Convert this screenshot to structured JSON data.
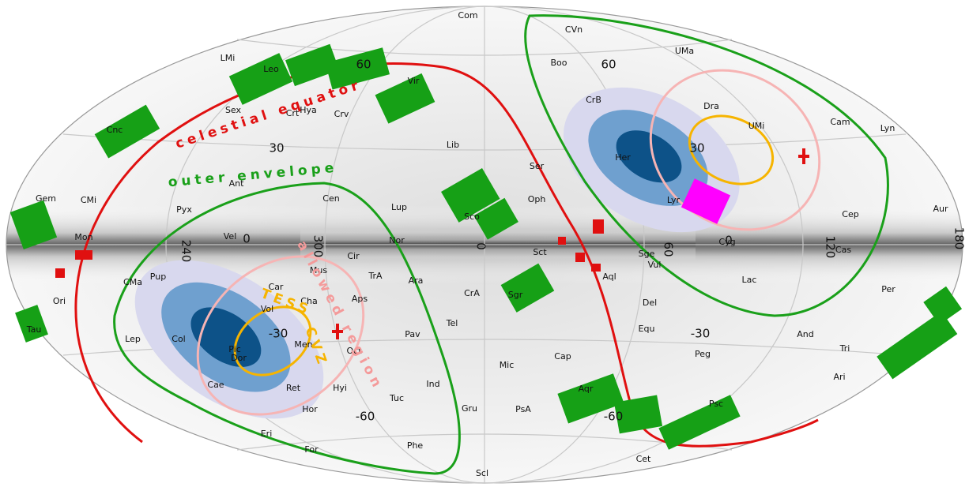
{
  "map": {
    "constellations": [
      "Com",
      "CVn",
      "UMa",
      "LMi",
      "Leo",
      "Boo",
      "Vir",
      "Sex",
      "Crt",
      "Hya",
      "Crv",
      "CrB",
      "Dra",
      "UMi",
      "Cam",
      "Lyn",
      "Cnc",
      "Lib",
      "Her",
      "Ser",
      "Ant",
      "Cen",
      "Gem",
      "CMi",
      "Pyx",
      "Lup",
      "Oph",
      "Lyr",
      "Cep",
      "Aur",
      "Mon",
      "Vel",
      "Sco",
      "Nor",
      "Cir",
      "Mus",
      "Sct",
      "Sge",
      "Cyg",
      "Cas",
      "CMa",
      "Pup",
      "Car",
      "TrA",
      "Ara",
      "Vul",
      "Lac",
      "Aps",
      "Cha",
      "Aql",
      "Ori",
      "Vol",
      "CrA",
      "Sgr",
      "Del",
      "Per",
      "Tel",
      "Equ",
      "Tau",
      "Lep",
      "Col",
      "Men",
      "Oct",
      "Pav",
      "And",
      "Pic",
      "Dor",
      "Cap",
      "Peg",
      "Tri",
      "Mic",
      "Ind",
      "Ari",
      "Hyi",
      "Cae",
      "Ret",
      "Tuc",
      "Hor",
      "Gru",
      "PsA",
      "Psc",
      "Aqr",
      "Eri",
      "For",
      "Phe",
      "Cet",
      "Scl"
    ],
    "latitude_labels": [
      "60",
      "30",
      "0",
      "-30",
      "-60",
      "60",
      "30",
      "0",
      "-30",
      "-60"
    ],
    "longitude_labels": [
      "240",
      "300",
      "0",
      "60",
      "120",
      "180"
    ],
    "annotations": {
      "celestial_equator": "celestial equator",
      "outer_envelope": "outer envelope",
      "allowed_region": "allowed region",
      "tess_cvz_1": "TESS",
      "tess_cvz_2": "CVZ"
    }
  }
}
